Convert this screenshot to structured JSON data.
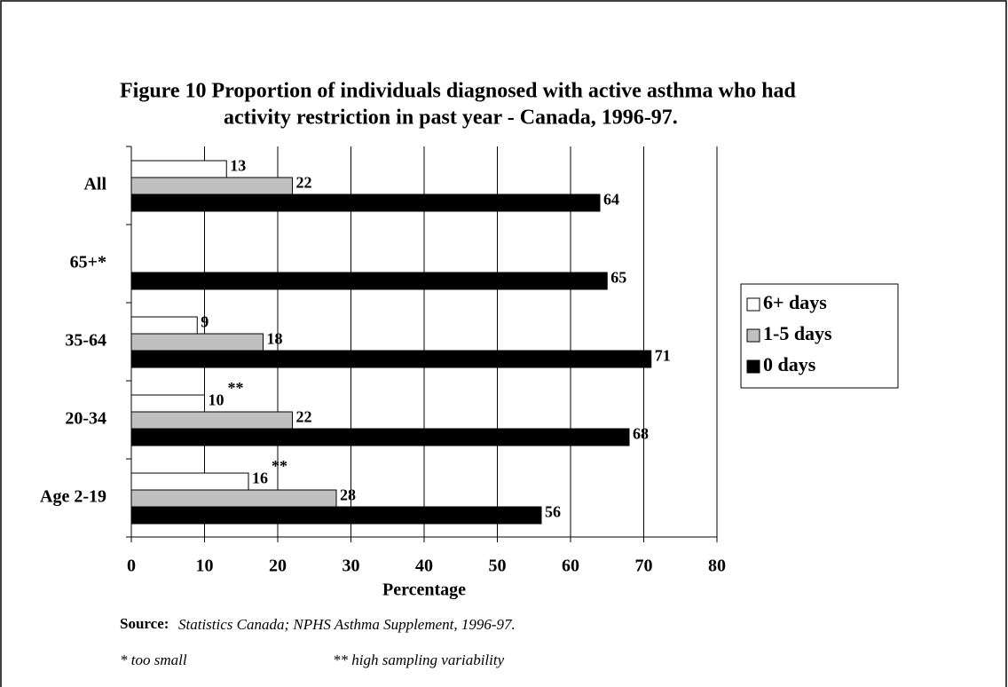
{
  "chart_data": {
    "type": "hbar",
    "title": [
      "Figure 10   Proportion of individuals diagnosed with active asthma who had",
      "activity restriction in past year - Canada, 1996-97."
    ],
    "categories": [
      "All",
      "65+*",
      "35-64",
      "20-34",
      "Age 2-19"
    ],
    "series": [
      {
        "name": "6+ days",
        "color": "#ffffff",
        "values": [
          13,
          null,
          9,
          10,
          16
        ],
        "notes": [
          null,
          null,
          null,
          "**",
          "**"
        ]
      },
      {
        "name": "1-5 days",
        "color": "#c0c0c0",
        "values": [
          22,
          null,
          18,
          22,
          28
        ]
      },
      {
        "name": "0 days",
        "color": "#000000",
        "values": [
          64,
          65,
          71,
          68,
          56
        ]
      }
    ],
    "xlim": [
      0,
      80
    ],
    "xticks": [
      0,
      10,
      20,
      30,
      40,
      50,
      60,
      70,
      80
    ],
    "grid": true,
    "xlabel": "Percentage",
    "legend": "right",
    "source_label": "Source:",
    "source": "Statistics Canada; NPHS Asthma Supplement, 1996-97.",
    "footnotes": [
      "* too small",
      "** high sampling variability"
    ]
  }
}
